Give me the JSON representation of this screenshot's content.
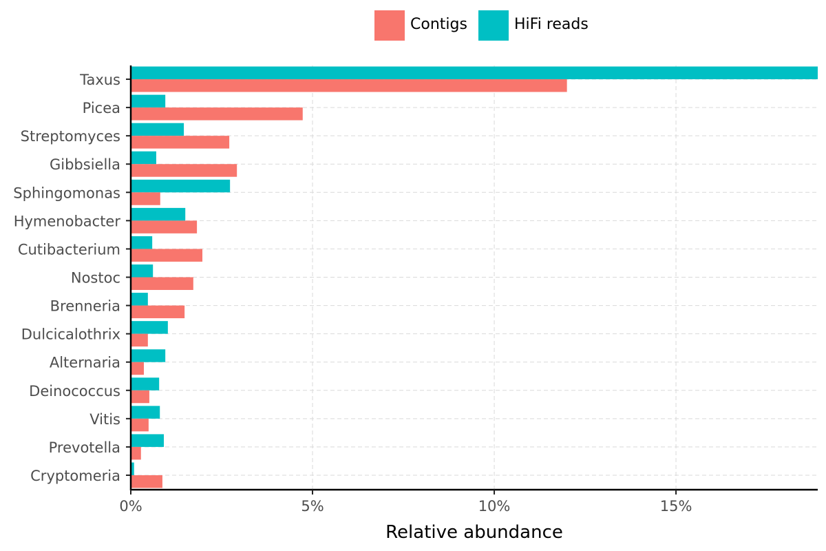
{
  "chart_data": {
    "type": "bar",
    "orientation": "horizontal",
    "title": "",
    "xlabel": "Relative abundance",
    "ylabel": "",
    "xlim": [
      0,
      18.9
    ],
    "x_ticks": [
      0,
      5,
      10,
      15
    ],
    "x_tick_labels": [
      "0%",
      "5%",
      "10%",
      "15%"
    ],
    "grid": true,
    "legend_position": "top",
    "categories": [
      "Taxus",
      "Picea",
      "Streptomyces",
      "Gibbsiella",
      "Sphingomonas",
      "Hymenobacter",
      "Cutibacterium",
      "Nostoc",
      "Brenneria",
      "Dulcicalothrix",
      "Alternaria",
      "Deinococcus",
      "Vitis",
      "Prevotella",
      "Cryptomeria"
    ],
    "series": [
      {
        "name": "Contigs",
        "color": "#F8766D",
        "values": [
          12.0,
          4.73,
          2.71,
          2.92,
          0.81,
          1.82,
          1.97,
          1.72,
          1.48,
          0.47,
          0.36,
          0.51,
          0.49,
          0.28,
          0.87
        ]
      },
      {
        "name": "HiFi reads",
        "color": "#00BFC4",
        "values": [
          18.9,
          0.95,
          1.46,
          0.7,
          2.73,
          1.5,
          0.59,
          0.61,
          0.47,
          1.02,
          0.95,
          0.78,
          0.8,
          0.91,
          0.09
        ]
      }
    ]
  }
}
